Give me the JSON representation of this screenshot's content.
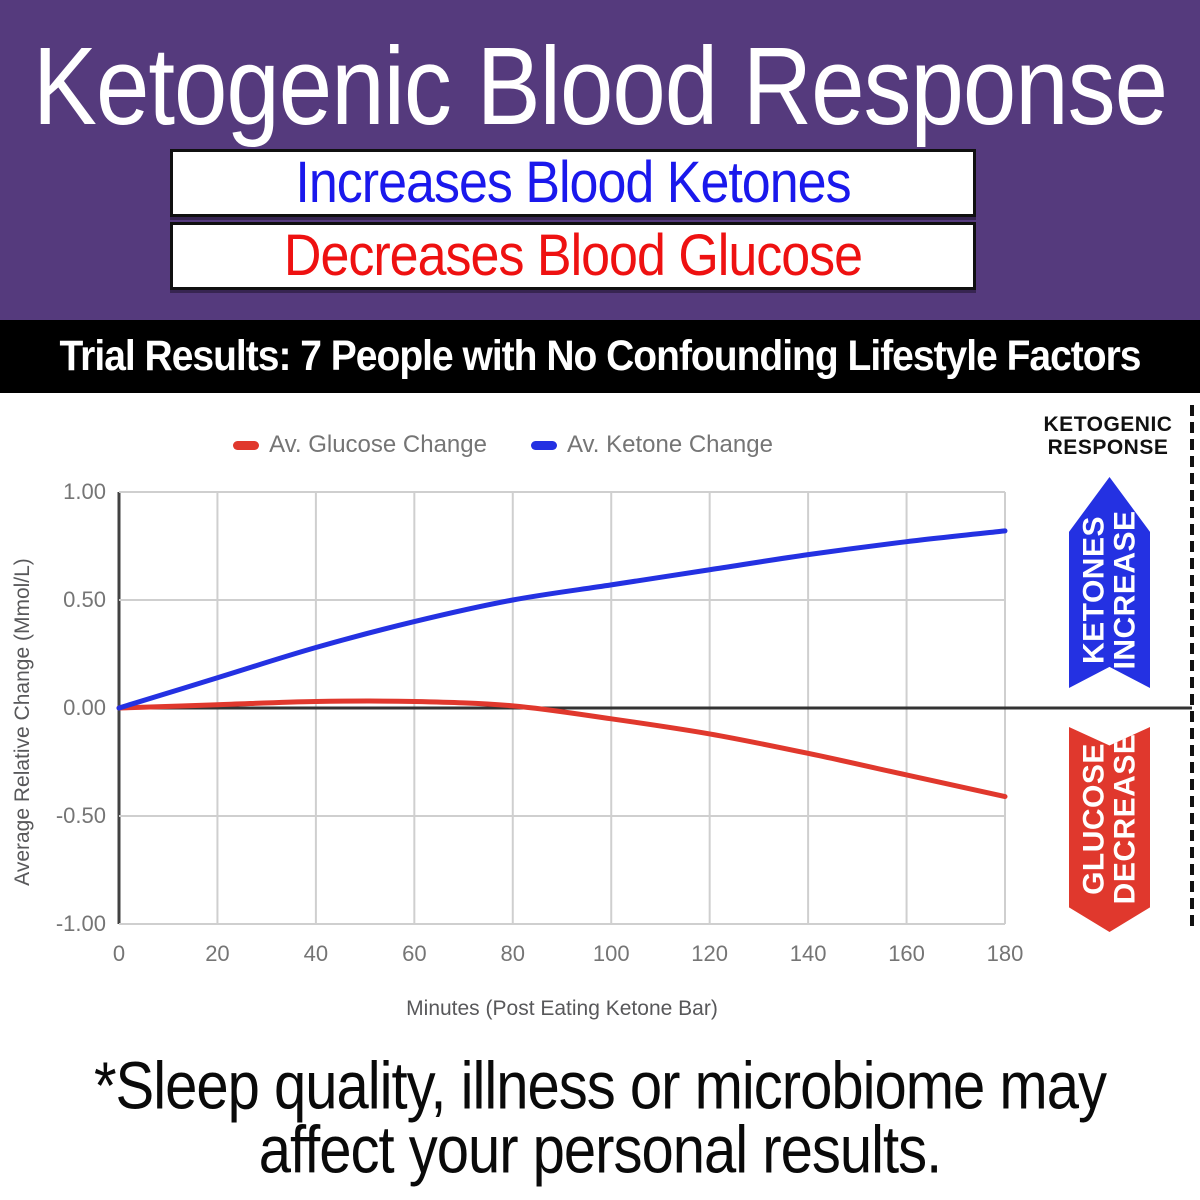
{
  "header": {
    "title": "Ketogenic Blood Response",
    "bg_color": "#553a7d",
    "badges": [
      {
        "label": "Increases Blood Ketones",
        "color": "#1a18ec"
      },
      {
        "label": "Decreases Blood Glucose",
        "color": "#ee1111"
      }
    ]
  },
  "banner": {
    "text": "Trial Results: 7 People with No Confounding Lifestyle Factors",
    "bg_color": "#000000"
  },
  "chart_data": {
    "type": "line",
    "x": [
      0,
      20,
      40,
      60,
      80,
      100,
      120,
      140,
      160,
      180
    ],
    "series": [
      {
        "name": "Av. Glucose Change",
        "color": "#e0382d",
        "values": [
          0,
          0.015,
          0.03,
          0.03,
          0.01,
          -0.05,
          -0.12,
          -0.21,
          -0.31,
          -0.41
        ]
      },
      {
        "name": "Av. Ketone Change",
        "color": "#2431e2",
        "values": [
          0,
          0.14,
          0.28,
          0.4,
          0.5,
          0.57,
          0.64,
          0.71,
          0.77,
          0.82
        ]
      }
    ],
    "xlabel": "Minutes (Post Eating Ketone Bar)",
    "ylabel": "Average Relative Change (Mmol/L)",
    "xlim": [
      0,
      180
    ],
    "ylim": [
      -1.0,
      1.0
    ],
    "x_ticks": [
      "0",
      "20",
      "40",
      "60",
      "80",
      "100",
      "120",
      "140",
      "160",
      "180"
    ],
    "y_ticks": [
      "1.00",
      "0.50",
      "0.00",
      "-0.50",
      "-1.00"
    ],
    "grid": true,
    "legend_position": "top",
    "legend_text_color": "#757575",
    "zero_line": true
  },
  "annotations": {
    "heading_line1": "KETOGENIC",
    "heading_line2": "RESPONSE",
    "ketone_arrow": {
      "line1": "KETONES",
      "line2": "INCREASE",
      "color": "#2431e2"
    },
    "glucose_arrow": {
      "line1": "GLUCOSE",
      "line2": "DECREASE",
      "color": "#e0382d"
    }
  },
  "footnote": {
    "lines": [
      "*Sleep quality, illness or microbiome may",
      "affect your personal results."
    ]
  }
}
